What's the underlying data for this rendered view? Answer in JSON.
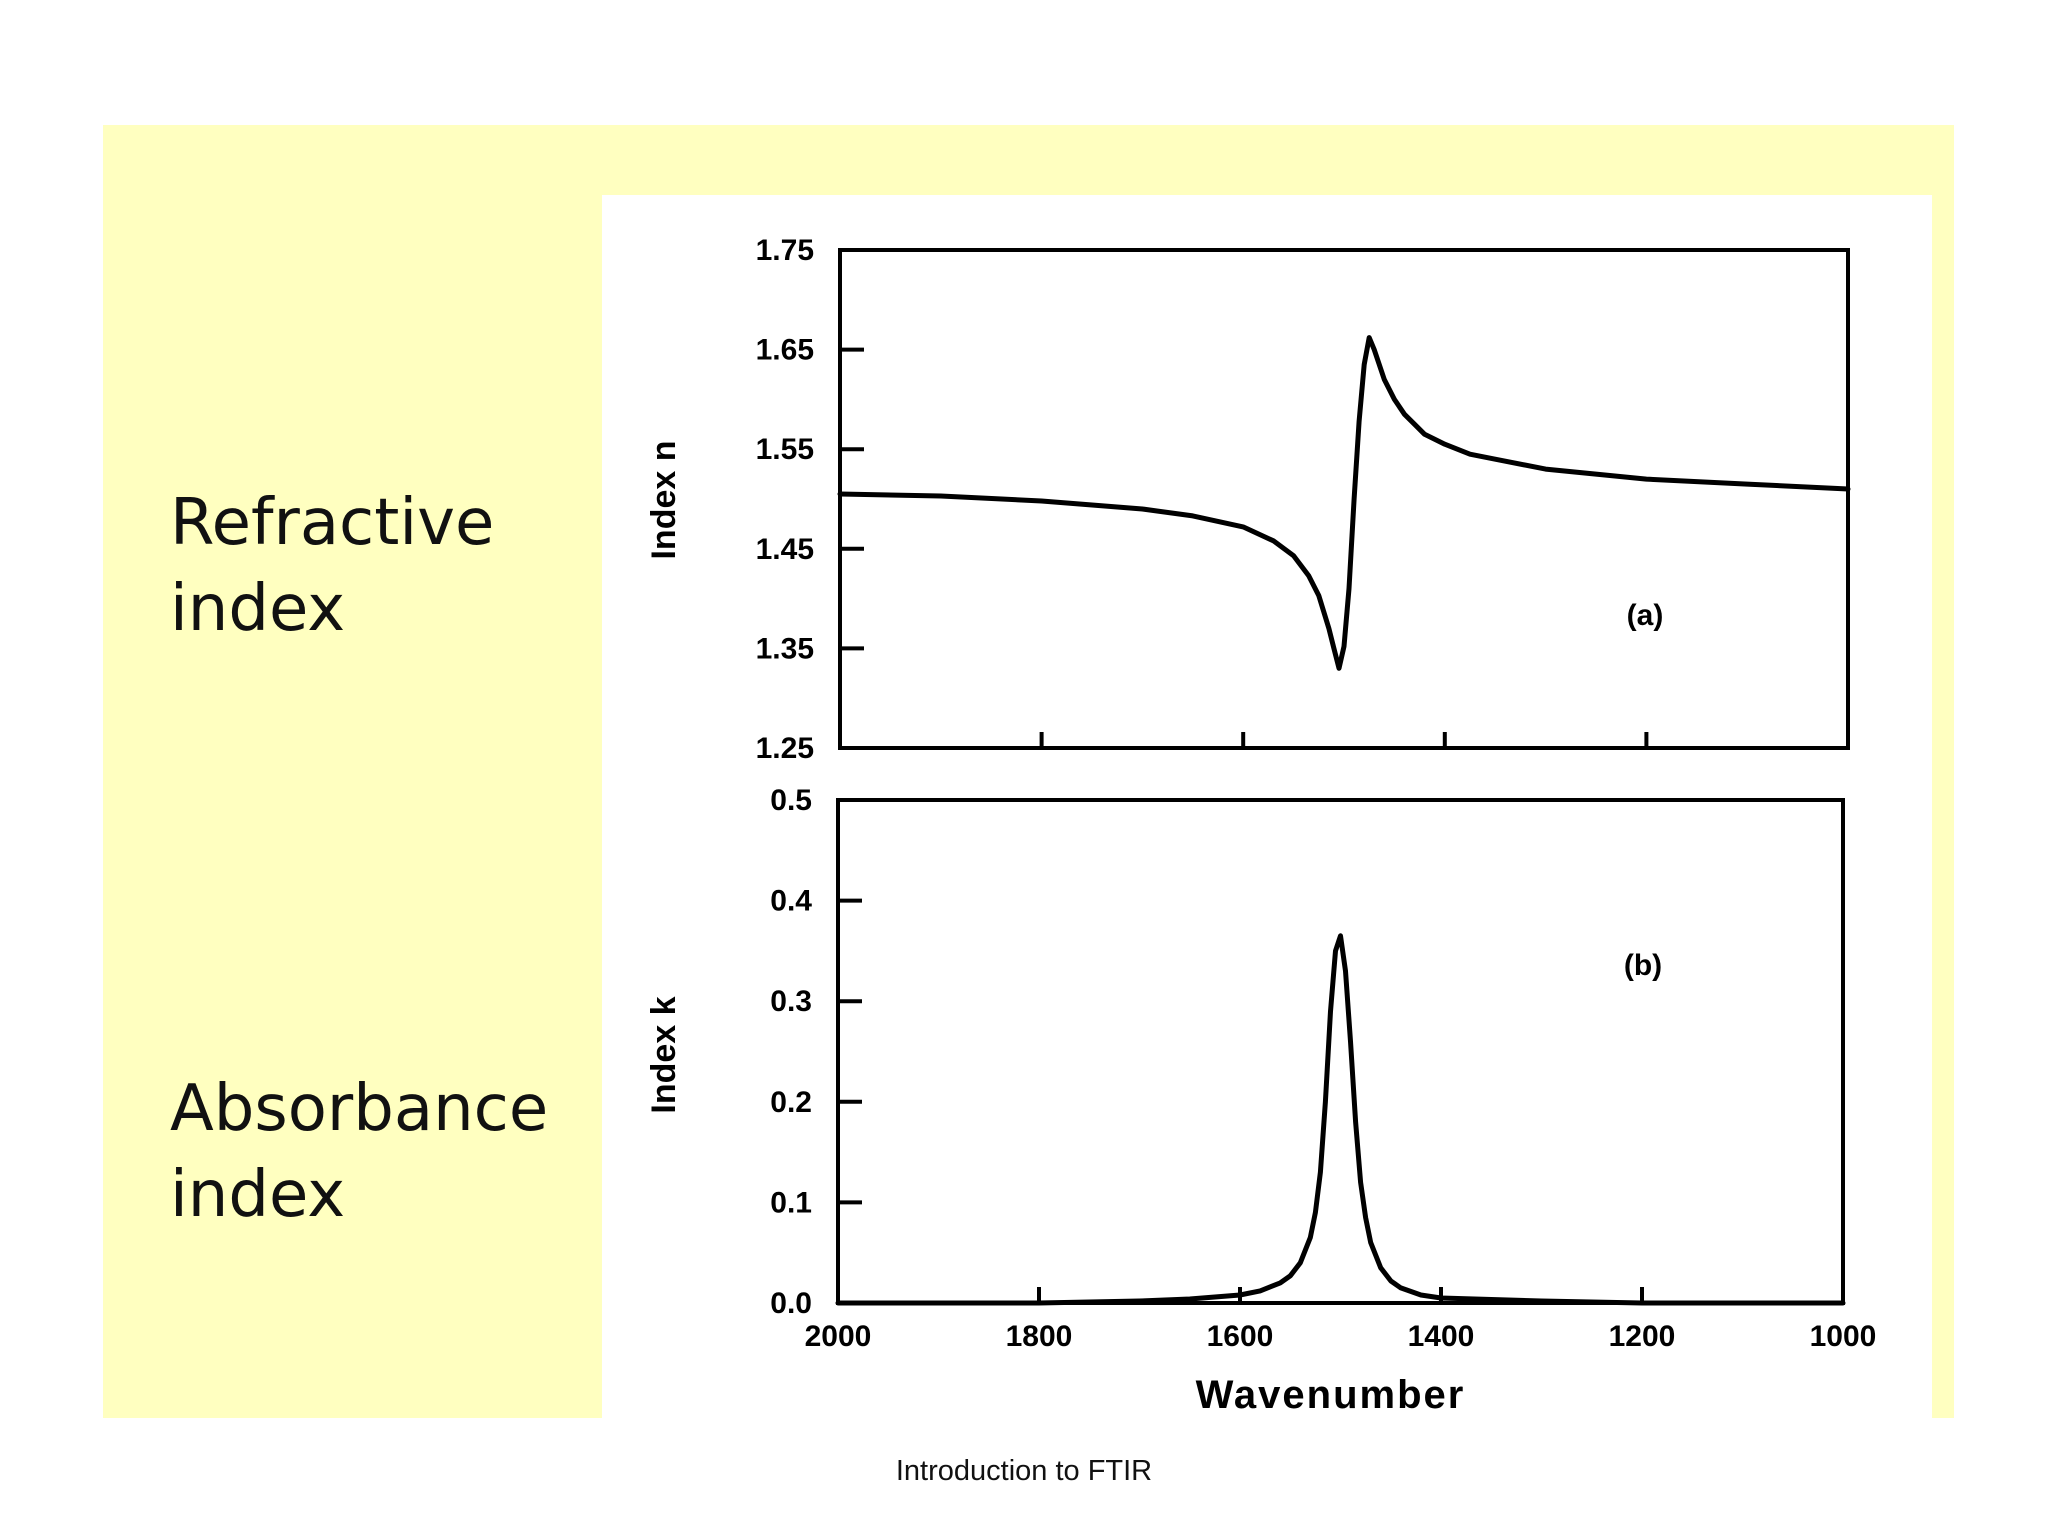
{
  "slide": {
    "labels": {
      "refractive": [
        "Refractive",
        "index"
      ],
      "absorbance": [
        "Absorbance",
        "index"
      ]
    },
    "footer": "Introduction to FTIR"
  },
  "colors": {
    "panel": "#ffffc0",
    "ink": "#000000"
  },
  "chart_data": [
    {
      "type": "line",
      "panel_label": "(a)",
      "ylabel": "Index n",
      "xlabel": "",
      "xlim": [
        2000,
        1000
      ],
      "ylim": [
        1.25,
        1.75
      ],
      "x_ticks": [
        2000,
        1800,
        1600,
        1400,
        1200,
        1000
      ],
      "x_tick_labels": [],
      "y_ticks": [
        1.25,
        1.35,
        1.45,
        1.55,
        1.65,
        1.75
      ],
      "y_tick_labels": [
        "1.25",
        "1.35",
        "1.45",
        "1.55",
        "1.65",
        "1.75"
      ],
      "series": [
        {
          "x": [
            2000,
            1900,
            1800,
            1700,
            1650,
            1600,
            1570,
            1550,
            1535,
            1525,
            1515,
            1510,
            1505,
            1500,
            1495,
            1490,
            1485,
            1480,
            1475,
            1470,
            1460,
            1450,
            1440,
            1430,
            1420,
            1400,
            1375,
            1350,
            1300,
            1250,
            1200,
            1100,
            1000
          ],
          "y": [
            1.505,
            1.503,
            1.498,
            1.49,
            1.483,
            1.472,
            1.458,
            1.443,
            1.423,
            1.403,
            1.37,
            1.35,
            1.33,
            1.352,
            1.41,
            1.5,
            1.578,
            1.635,
            1.662,
            1.65,
            1.62,
            1.6,
            1.585,
            1.575,
            1.565,
            1.555,
            1.545,
            1.54,
            1.53,
            1.525,
            1.52,
            1.515,
            1.51
          ]
        }
      ]
    },
    {
      "type": "line",
      "panel_label": "(b)",
      "ylabel": "Index k",
      "xlabel": "Wavenumber",
      "xlim": [
        2000,
        1000
      ],
      "ylim": [
        0.0,
        0.5
      ],
      "x_ticks": [
        2000,
        1800,
        1600,
        1400,
        1200,
        1000
      ],
      "x_tick_labels": [
        "2000",
        "1800",
        "1600",
        "1400",
        "1200",
        "1000"
      ],
      "y_ticks": [
        0.0,
        0.1,
        0.2,
        0.3,
        0.4,
        0.5
      ],
      "y_tick_labels": [
        "0.0",
        "0.1",
        "0.2",
        "0.3",
        "0.4",
        "0.5"
      ],
      "series": [
        {
          "x": [
            2000,
            1800,
            1700,
            1650,
            1600,
            1580,
            1560,
            1550,
            1540,
            1530,
            1525,
            1520,
            1515,
            1510,
            1505,
            1500,
            1495,
            1490,
            1485,
            1480,
            1475,
            1470,
            1460,
            1450,
            1440,
            1420,
            1400,
            1300,
            1200,
            1000
          ],
          "y": [
            0.0,
            0.0,
            0.002,
            0.004,
            0.008,
            0.012,
            0.02,
            0.027,
            0.04,
            0.065,
            0.09,
            0.13,
            0.2,
            0.29,
            0.35,
            0.365,
            0.33,
            0.26,
            0.18,
            0.12,
            0.085,
            0.06,
            0.035,
            0.022,
            0.015,
            0.008,
            0.005,
            0.002,
            0.0,
            0.0
          ]
        }
      ]
    }
  ]
}
